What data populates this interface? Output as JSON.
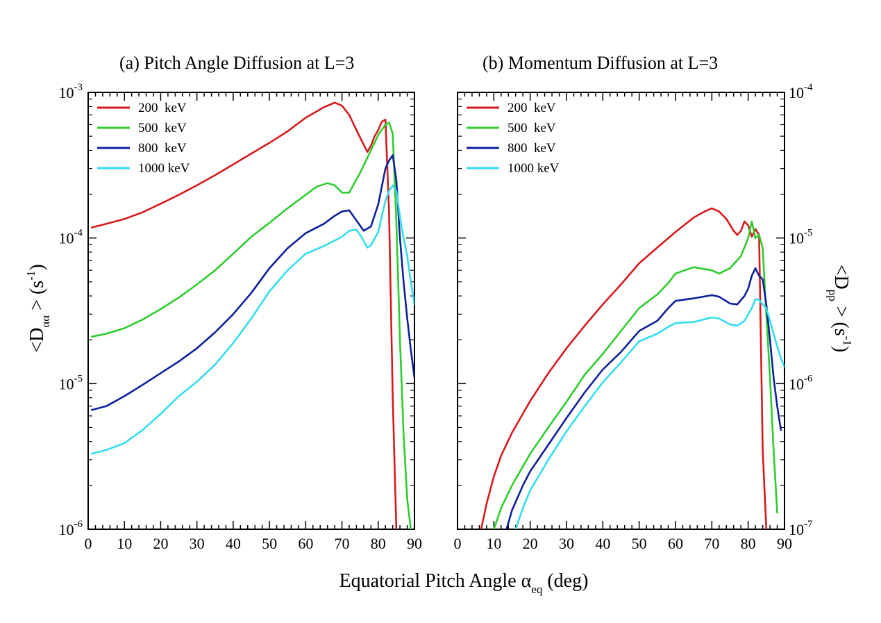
{
  "chart_data": [
    {
      "type": "line",
      "title": "(a) Pitch Angle Diffusion at L=3",
      "xlabel": "Equatorial Pitch Angle α_eq (deg)",
      "ylabel": "<D_αα> (s^-1)",
      "y_scale": "log",
      "xlim": [
        0,
        90
      ],
      "ylim": [
        1e-06,
        0.001
      ],
      "x_ticks": [
        "0",
        "10",
        "20",
        "30",
        "40",
        "50",
        "60",
        "70",
        "80",
        "90"
      ],
      "y_ticks": [
        "10-6",
        "10-5",
        "10-4",
        "10-3"
      ],
      "legend_position": "top-left",
      "grid": false,
      "series": [
        {
          "name": "200  keV",
          "color": "#d7191c",
          "x": [
            1,
            5,
            10,
            15,
            20,
            25,
            30,
            35,
            40,
            45,
            50,
            55,
            60,
            65,
            68,
            70,
            72,
            75,
            77,
            78,
            79,
            80,
            81,
            82,
            83,
            84,
            85
          ],
          "y": [
            0.000118,
            0.000125,
            0.000135,
            0.00015,
            0.000172,
            0.000198,
            0.00023,
            0.00027,
            0.00032,
            0.00038,
            0.00045,
            0.00054,
            0.00067,
            0.00079,
            0.00085,
            0.00081,
            0.0007,
            0.00049,
            0.00039,
            0.00043,
            0.0005,
            0.00055,
            0.00063,
            0.00065,
            0.00015,
            8e-06,
            1e-06
          ]
        },
        {
          "name": "500  keV",
          "color": "#2ecc2e",
          "x": [
            1,
            5,
            10,
            15,
            20,
            25,
            30,
            35,
            40,
            45,
            50,
            55,
            60,
            63,
            66,
            68,
            70,
            72,
            75,
            78,
            80,
            82,
            83,
            84,
            85,
            86,
            87,
            88,
            89
          ],
          "y": [
            2.1e-05,
            2.2e-05,
            2.4e-05,
            2.75e-05,
            3.25e-05,
            3.9e-05,
            4.8e-05,
            6e-05,
            7.8e-05,
            0.000102,
            0.000127,
            0.00016,
            0.000198,
            0.000225,
            0.000238,
            0.00023,
            0.000205,
            0.000205,
            0.00028,
            0.0004,
            0.00051,
            0.0006,
            0.00062,
            0.00052,
            0.00013,
            2e-05,
            4.5e-06,
            1.6e-06,
            1e-06
          ]
        },
        {
          "name": "800  keV",
          "color": "#0d1f9c",
          "x": [
            1,
            5,
            10,
            15,
            20,
            25,
            30,
            35,
            40,
            45,
            50,
            55,
            60,
            65,
            68,
            70,
            72,
            74,
            76,
            78,
            80,
            82,
            83,
            84,
            85,
            86,
            87,
            88,
            89,
            90
          ],
          "y": [
            6.6e-06,
            7e-06,
            8.2e-06,
            9.8e-06,
            1.18e-05,
            1.42e-05,
            1.75e-05,
            2.25e-05,
            3e-05,
            4.2e-05,
            6.2e-05,
            8.5e-05,
            0.000108,
            0.000125,
            0.000142,
            0.000152,
            0.000155,
            0.000132,
            0.000112,
            0.00012,
            0.00017,
            0.0003,
            0.00034,
            0.00037,
            0.00025,
            0.0001,
            5e-05,
            2.8e-05,
            1.7e-05,
            1.1e-05
          ]
        },
        {
          "name": "1000 keV",
          "color": "#33ddee",
          "x": [
            1,
            5,
            10,
            15,
            20,
            25,
            30,
            35,
            40,
            45,
            50,
            55,
            60,
            65,
            70,
            72,
            74,
            75,
            77,
            78,
            80,
            82,
            83,
            84,
            85,
            86,
            87,
            88,
            89,
            90
          ],
          "y": [
            3.3e-06,
            3.5e-06,
            3.9e-06,
            4.8e-06,
            6.2e-06,
            8.2e-06,
            1.03e-05,
            1.35e-05,
            1.9e-05,
            2.8e-05,
            4.3e-05,
            6e-05,
            7.8e-05,
            8.8e-05,
            0.000102,
            0.000112,
            0.000114,
            0.000105,
            8.6e-05,
            8.9e-05,
            0.00011,
            0.00018,
            0.00021,
            0.00023,
            0.00021,
            0.00014,
            0.0001,
            7.5e-05,
            5e-05,
            3.5e-05
          ]
        }
      ]
    },
    {
      "type": "line",
      "title": "(b) Momentum Diffusion at L=3",
      "xlabel": "Equatorial Pitch Angle α_eq (deg)",
      "ylabel": "<D_pp> (s^-1)",
      "y_scale": "log",
      "y_axis_side": "right",
      "xlim": [
        0,
        90
      ],
      "ylim": [
        1e-07,
        0.0001
      ],
      "x_ticks": [
        "0",
        "10",
        "20",
        "30",
        "40",
        "50",
        "60",
        "70",
        "80",
        "90"
      ],
      "y_ticks": [
        "10-7",
        "10-6",
        "10-5",
        "10-4"
      ],
      "legend_position": "top-left",
      "grid": false,
      "series": [
        {
          "name": "200  keV",
          "color": "#d7191c",
          "x": [
            6.5,
            8,
            10,
            12,
            15,
            20,
            25,
            30,
            35,
            40,
            45,
            50,
            55,
            60,
            65,
            68,
            70,
            72,
            74,
            76,
            77,
            78,
            79,
            80,
            81,
            82,
            83,
            84,
            85
          ],
          "y": [
            1e-07,
            1.5e-07,
            2.3e-07,
            3.2e-07,
            4.6e-07,
            7.6e-07,
            1.18e-06,
            1.75e-06,
            2.5e-06,
            3.5e-06,
            4.8e-06,
            6.7e-06,
            8.6e-06,
            1.1e-05,
            1.38e-05,
            1.52e-05,
            1.6e-05,
            1.52e-05,
            1.35e-05,
            1.12e-05,
            1.05e-05,
            1.12e-05,
            1.3e-05,
            1.22e-05,
            1.02e-05,
            1.15e-05,
            1.05e-05,
            3.5e-07,
            1e-07
          ]
        },
        {
          "name": "500  keV",
          "color": "#2ecc2e",
          "x": [
            10,
            12,
            15,
            20,
            25,
            30,
            35,
            40,
            45,
            50,
            55,
            58,
            60,
            65,
            70,
            72,
            75,
            78,
            80,
            81,
            82,
            83,
            84,
            85,
            86,
            87,
            88
          ],
          "y": [
            1e-07,
            1.4e-07,
            2e-07,
            3.3e-07,
            5e-07,
            7.5e-07,
            1.15e-06,
            1.6e-06,
            2.3e-06,
            3.3e-06,
            4.1e-06,
            4.9e-06,
            5.7e-06,
            6.3e-06,
            6e-06,
            5.7e-06,
            6.2e-06,
            7.5e-06,
            1e-05,
            1.3e-05,
            1e-05,
            1.05e-05,
            8.5e-06,
            3e-06,
            1.1e-06,
            3.5e-07,
            1.3e-07
          ]
        },
        {
          "name": "800  keV",
          "color": "#0d1f9c",
          "x": [
            13.5,
            15,
            18,
            20,
            25,
            30,
            35,
            40,
            45,
            50,
            55,
            58,
            60,
            65,
            70,
            72,
            75,
            77,
            79,
            80,
            81,
            82,
            83,
            84,
            85,
            86,
            87,
            88,
            89
          ],
          "y": [
            1e-07,
            1.35e-07,
            2e-07,
            2.5e-07,
            3.8e-07,
            5.8e-07,
            8.7e-07,
            1.25e-06,
            1.65e-06,
            2.3e-06,
            2.7e-06,
            3.3e-06,
            3.7e-06,
            3.85e-06,
            4.05e-06,
            3.95e-06,
            3.55e-06,
            3.5e-06,
            4e-06,
            4.5e-06,
            5.5e-06,
            6.2e-06,
            5.5e-06,
            5.2e-06,
            3.5e-06,
            2e-06,
            1.1e-06,
            7e-07,
            4.8e-07
          ]
        },
        {
          "name": "1000 keV",
          "color": "#33ddee",
          "x": [
            16,
            18,
            20,
            25,
            30,
            35,
            40,
            45,
            50,
            55,
            58,
            60,
            65,
            70,
            72,
            75,
            77,
            79,
            80,
            81,
            82,
            83,
            84,
            85,
            86,
            87,
            88,
            89,
            90
          ],
          "y": [
            1e-07,
            1.4e-07,
            1.85e-07,
            3e-07,
            4.7e-07,
            7e-07,
            1.02e-06,
            1.4e-06,
            1.95e-06,
            2.2e-06,
            2.45e-06,
            2.6e-06,
            2.65e-06,
            2.85e-06,
            2.8e-06,
            2.55e-06,
            2.5e-06,
            2.7e-06,
            3e-06,
            3.3e-06,
            3.8e-06,
            3.75e-06,
            3.5e-06,
            3.3e-06,
            2.7e-06,
            2.2e-06,
            1.8e-06,
            1.5e-06,
            1.3e-06
          ]
        }
      ]
    }
  ]
}
